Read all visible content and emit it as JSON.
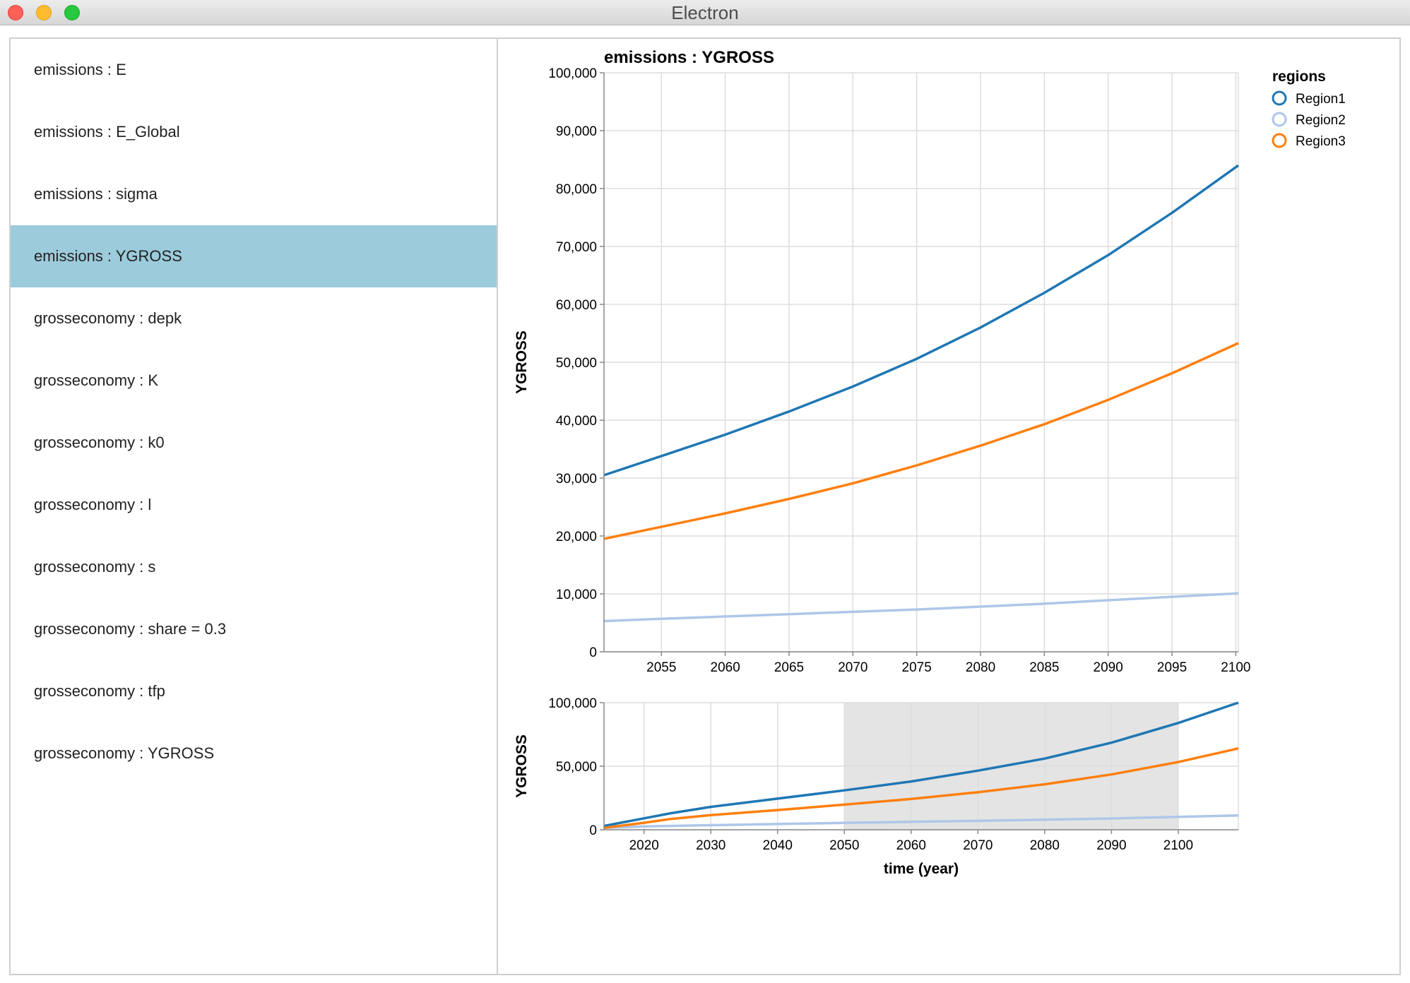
{
  "window": {
    "title": "Electron"
  },
  "sidebar": {
    "items": [
      {
        "label": "emissions : E",
        "selected": false
      },
      {
        "label": "emissions : E_Global",
        "selected": false
      },
      {
        "label": "emissions : sigma",
        "selected": false
      },
      {
        "label": "emissions : YGROSS",
        "selected": true
      },
      {
        "label": "grosseconomy : depk",
        "selected": false
      },
      {
        "label": "grosseconomy : K",
        "selected": false
      },
      {
        "label": "grosseconomy : k0",
        "selected": false
      },
      {
        "label": "grosseconomy : l",
        "selected": false
      },
      {
        "label": "grosseconomy : s",
        "selected": false
      },
      {
        "label": "grosseconomy : share = 0.3",
        "selected": false
      },
      {
        "label": "grosseconomy : tfp",
        "selected": false
      },
      {
        "label": "grosseconomy : YGROSS",
        "selected": false
      }
    ]
  },
  "colors": {
    "region1": "#1f77b4",
    "region2": "#aec7e8",
    "region3": "#ff7f0e",
    "selection": "#9ccbdb",
    "brush": "#e4e4e4"
  },
  "chart_data": [
    {
      "type": "line",
      "title": "emissions : YGROSS",
      "xlabel": "",
      "ylabel": "YGROSS",
      "xlim": [
        2050.5,
        2100.2
      ],
      "ylim": [
        0,
        100000
      ],
      "xticks": [
        2055,
        2060,
        2065,
        2070,
        2075,
        2080,
        2085,
        2090,
        2095,
        2100
      ],
      "yticks": [
        0,
        10000,
        20000,
        30000,
        40000,
        50000,
        60000,
        70000,
        80000,
        90000,
        100000
      ],
      "ytick_labels": [
        "0",
        "10,000",
        "20,000",
        "30,000",
        "40,000",
        "50,000",
        "60,000",
        "70,000",
        "80,000",
        "90,000",
        "100,000"
      ],
      "grid": true,
      "legend": {
        "title": "regions",
        "position": "top-right",
        "entries": [
          "Region1",
          "Region2",
          "Region3"
        ]
      },
      "series": [
        {
          "name": "Region1",
          "x": [
            2050.5,
            2055,
            2060,
            2065,
            2070,
            2075,
            2080,
            2085,
            2090,
            2095,
            2100.2
          ],
          "values": [
            30500,
            33800,
            37500,
            41500,
            45800,
            50600,
            56000,
            62000,
            68500,
            75800,
            84000
          ]
        },
        {
          "name": "Region2",
          "x": [
            2050.5,
            2055,
            2060,
            2065,
            2070,
            2075,
            2080,
            2085,
            2090,
            2095,
            2100.2
          ],
          "values": [
            5300,
            5700,
            6100,
            6500,
            6900,
            7300,
            7800,
            8300,
            8900,
            9500,
            10100
          ]
        },
        {
          "name": "Region3",
          "x": [
            2050.5,
            2055,
            2060,
            2065,
            2070,
            2075,
            2080,
            2085,
            2090,
            2095,
            2100.2
          ],
          "values": [
            19500,
            21600,
            23900,
            26400,
            29100,
            32200,
            35600,
            39300,
            43500,
            48100,
            53300
          ]
        }
      ]
    },
    {
      "type": "line",
      "title": "",
      "xlabel": "time (year)",
      "ylabel": "YGROSS",
      "xlim": [
        2014,
        2109
      ],
      "ylim": [
        0,
        100000
      ],
      "xticks": [
        2020,
        2030,
        2040,
        2050,
        2060,
        2070,
        2080,
        2090,
        2100
      ],
      "yticks": [
        0,
        50000,
        100000
      ],
      "ytick_labels": [
        "0",
        "50,000",
        "100,000"
      ],
      "grid": true,
      "brush": [
        2050,
        2100
      ],
      "series": [
        {
          "name": "Region1",
          "x": [
            2014,
            2020,
            2024,
            2030,
            2040,
            2050,
            2060,
            2070,
            2080,
            2090,
            2100,
            2109
          ],
          "values": [
            3000,
            9000,
            13000,
            18000,
            24500,
            31000,
            38000,
            46500,
            56000,
            68500,
            84000,
            100000
          ]
        },
        {
          "name": "Region2",
          "x": [
            2014,
            2020,
            2030,
            2040,
            2050,
            2060,
            2070,
            2080,
            2090,
            2100,
            2109
          ],
          "values": [
            1500,
            2600,
            3600,
            4500,
            5400,
            6200,
            7000,
            7900,
            8900,
            10100,
            11300
          ]
        },
        {
          "name": "Region3",
          "x": [
            2014,
            2020,
            2024,
            2030,
            2040,
            2050,
            2060,
            2070,
            2080,
            2090,
            2100,
            2109
          ],
          "values": [
            1500,
            5500,
            8500,
            11500,
            15500,
            19800,
            24200,
            29500,
            35800,
            43500,
            53300,
            64000
          ]
        }
      ]
    }
  ]
}
